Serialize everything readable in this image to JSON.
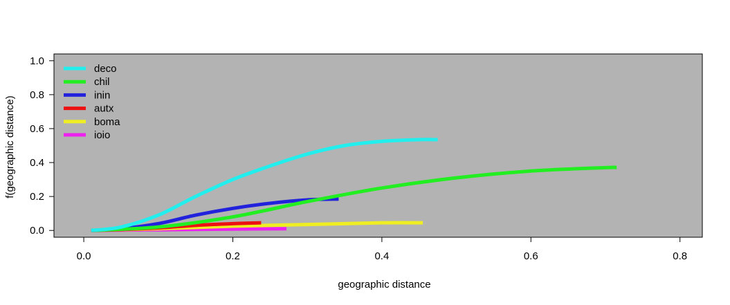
{
  "chart_data": {
    "type": "line",
    "xlabel": "geographic distance",
    "ylabel": "f(geographic distance)",
    "xlim": [
      -0.04,
      0.83
    ],
    "ylim": [
      -0.04,
      1.04
    ],
    "xticks": [
      0.0,
      0.2,
      0.4,
      0.6,
      0.8
    ],
    "yticks": [
      0.0,
      0.2,
      0.4,
      0.6,
      0.8,
      1.0
    ],
    "xtick_labels": [
      "0.0",
      "0.2",
      "0.4",
      "0.6",
      "0.8"
    ],
    "ytick_labels": [
      "0.0",
      "0.2",
      "0.4",
      "0.6",
      "0.8",
      "1.0"
    ],
    "grid": false,
    "legend_position": "top-left",
    "plot_background": "#b3b3b3",
    "series": [
      {
        "name": "deco",
        "color": "#22eeee",
        "x": [
          0.01,
          0.05,
          0.1,
          0.15,
          0.2,
          0.25,
          0.3,
          0.35,
          0.4,
          0.45,
          0.475
        ],
        "y": [
          0.0,
          0.02,
          0.09,
          0.2,
          0.3,
          0.38,
          0.45,
          0.5,
          0.525,
          0.535,
          0.535
        ]
      },
      {
        "name": "chil",
        "color": "#22ee22",
        "x": [
          0.01,
          0.1,
          0.2,
          0.3,
          0.4,
          0.5,
          0.6,
          0.7,
          0.715
        ],
        "y": [
          0.0,
          0.02,
          0.08,
          0.17,
          0.25,
          0.31,
          0.35,
          0.37,
          0.37
        ]
      },
      {
        "name": "inin",
        "color": "#2222dd",
        "x": [
          0.01,
          0.05,
          0.1,
          0.15,
          0.2,
          0.25,
          0.3,
          0.342
        ],
        "y": [
          0.0,
          0.01,
          0.04,
          0.09,
          0.13,
          0.16,
          0.18,
          0.185
        ]
      },
      {
        "name": "autx",
        "color": "#ee1111",
        "x": [
          0.01,
          0.05,
          0.1,
          0.15,
          0.2,
          0.238
        ],
        "y": [
          0.0,
          0.005,
          0.015,
          0.03,
          0.04,
          0.045
        ]
      },
      {
        "name": "boma",
        "color": "#eeee22",
        "x": [
          0.01,
          0.1,
          0.2,
          0.3,
          0.4,
          0.455
        ],
        "y": [
          0.0,
          0.01,
          0.025,
          0.035,
          0.045,
          0.045
        ]
      },
      {
        "name": "ioio",
        "color": "#ee22ee",
        "x": [
          0.01,
          0.1,
          0.2,
          0.272
        ],
        "y": [
          0.0,
          0.004,
          0.008,
          0.01
        ]
      }
    ]
  }
}
